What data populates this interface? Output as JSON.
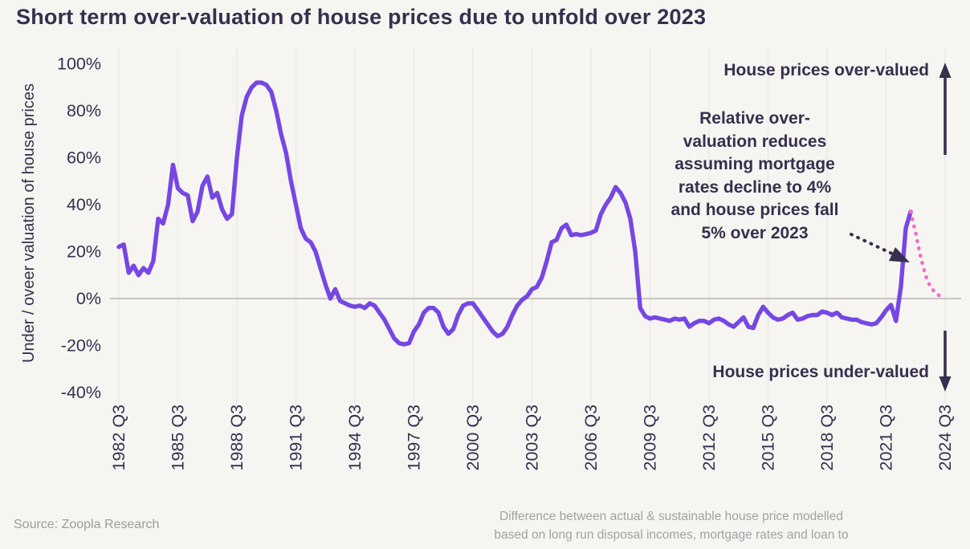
{
  "title": "Short term over-valuation of house prices due to unfold over 2023",
  "y_axis_label": "Under / oveer valuation of house prices",
  "annotations": {
    "over_valued": "House prices over-valued",
    "under_valued": "House prices under-valued",
    "callout": "Relative over-\nvaluation reduces\nassuming mortgage\nrates decline to 4%\nand house prices fall\n5% over 2023"
  },
  "source": "Source: Zoopla Research",
  "footnote": "Difference between actual & sustainable house price modelled\nbased on long run disposal incomes, mortgage rates and loan to",
  "colors": {
    "background": "#f7f5f2",
    "ink": "#372f4e",
    "actual_line": "#7647e3",
    "projection_line": "#f26bc8",
    "gridline": "#eae7e3",
    "zero_line": "#b8b5b2",
    "muted_text": "#9e9c99"
  },
  "chart_data": {
    "type": "line",
    "title": "Short term over-valuation of house prices due to unfold over 2023",
    "xlabel": "",
    "ylabel": "Under / oveer valuation of house prices",
    "x_unit": "quarters",
    "x_start": "1982 Q3",
    "x_end": "2024 Q3",
    "x_tick_interval_quarters": 12,
    "x_tick_labels": [
      "1982 Q3",
      "1985 Q3",
      "1988 Q3",
      "1991 Q3",
      "1994 Q3",
      "1997 Q3",
      "2000 Q3",
      "2003 Q3",
      "2006 Q3",
      "2009 Q3",
      "2012 Q3",
      "2015 Q3",
      "2018 Q3",
      "2021 Q3",
      "2024 Q3"
    ],
    "y_tick_labels": [
      "100%",
      "80%",
      "60%",
      "40%",
      "20%",
      "0%",
      "-20%",
      "-40%"
    ],
    "y_ticks": [
      100,
      80,
      60,
      40,
      20,
      0,
      -20,
      -40
    ],
    "ylim": [
      -45,
      105
    ],
    "grid": "vertical-only",
    "legend": "none",
    "series": [
      {
        "name": "Actual over/under valuation of house prices",
        "style": "solid",
        "color": "#7647e3",
        "start_quarter_index": 0,
        "values": [
          22,
          23,
          11,
          14,
          10,
          13,
          11,
          16,
          34,
          32,
          40,
          57,
          47,
          45,
          44,
          33,
          37,
          48,
          52,
          43,
          45,
          38,
          34,
          36,
          60,
          78,
          86,
          90,
          92,
          92,
          91,
          88,
          80,
          70,
          62,
          50,
          40,
          30,
          25.5,
          24,
          20,
          13,
          6,
          0,
          4,
          -1,
          -2,
          -3,
          -3.5,
          -3,
          -4,
          -2,
          -3,
          -6,
          -9,
          -13,
          -17,
          -19,
          -19.5,
          -19,
          -14,
          -11,
          -6,
          -4,
          -4,
          -6,
          -12,
          -15,
          -13,
          -7,
          -3,
          -2,
          -2,
          -5,
          -8,
          -11,
          -14,
          -16,
          -15,
          -12,
          -7,
          -3,
          -0.5,
          1,
          4,
          5,
          9,
          16,
          24,
          25,
          30,
          31.5,
          27,
          27.5,
          27,
          27.5,
          28,
          29,
          36,
          40,
          43,
          47.5,
          45,
          41,
          34,
          20,
          -4,
          -7.5,
          -8.5,
          -8,
          -8.5,
          -9,
          -9.5,
          -8.5,
          -9,
          -8.5,
          -12,
          -10.5,
          -9.5,
          -9.5,
          -10.5,
          -9,
          -8.5,
          -9.5,
          -11,
          -12,
          -10,
          -8,
          -12,
          -12.5,
          -7,
          -3.5,
          -6,
          -8,
          -9,
          -8.5,
          -7,
          -6,
          -9,
          -8.5,
          -7.5,
          -7,
          -7,
          -5.5,
          -6,
          -7,
          -6,
          -8,
          -8.5,
          -9,
          -9,
          -10,
          -10.5,
          -11,
          -10.5,
          -8,
          -5,
          -2.7,
          -9.5,
          5,
          30,
          37
        ]
      },
      {
        "name": "Projection assuming mortgage rates decline to 4% and house prices fall 5% over 2023",
        "style": "dotted",
        "color": "#f26bc8",
        "start_quarter_index": 161,
        "values": [
          37,
          28,
          18,
          10,
          5,
          2.5,
          1,
          0.3
        ]
      }
    ]
  }
}
